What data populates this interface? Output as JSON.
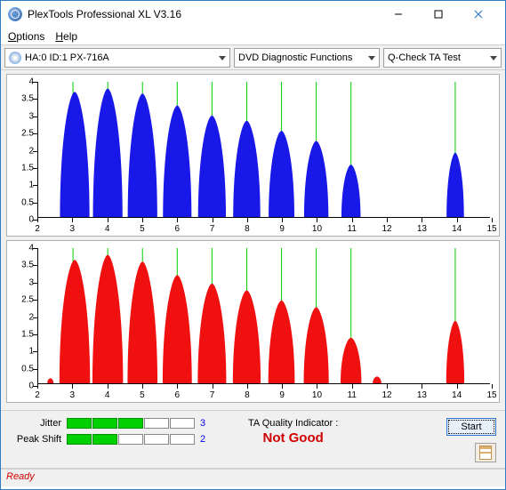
{
  "window": {
    "title": "PlexTools Professional XL V3.16"
  },
  "menu": {
    "options": "Options",
    "help": "Help"
  },
  "toolbar": {
    "device": "HA:0 ID:1  PX-716A",
    "mode": "DVD Diagnostic Functions",
    "test": "Q-Check TA Test"
  },
  "charts": {
    "x": {
      "min": 2,
      "max": 15,
      "ticks": [
        2,
        3,
        4,
        5,
        6,
        7,
        8,
        9,
        10,
        11,
        12,
        13,
        14,
        15
      ]
    },
    "y": {
      "min": 0,
      "max": 4,
      "ticks": [
        0,
        0.5,
        1,
        1.5,
        2,
        2.5,
        3,
        3.5,
        4
      ]
    },
    "vlines": [
      3,
      4,
      5,
      6,
      7,
      8,
      9,
      10,
      11,
      14
    ],
    "top": {
      "color": "#1818e8",
      "peaks": [
        {
          "c": 3.05,
          "h": 3.7,
          "w": 0.85
        },
        {
          "c": 4.0,
          "h": 3.8,
          "w": 0.85
        },
        {
          "c": 5.0,
          "h": 3.65,
          "w": 0.85
        },
        {
          "c": 6.0,
          "h": 3.3,
          "w": 0.82
        },
        {
          "c": 7.0,
          "h": 3.0,
          "w": 0.8
        },
        {
          "c": 8.0,
          "h": 2.85,
          "w": 0.78
        },
        {
          "c": 9.0,
          "h": 2.55,
          "w": 0.74
        },
        {
          "c": 10.0,
          "h": 2.25,
          "w": 0.7
        },
        {
          "c": 11.0,
          "h": 1.55,
          "w": 0.55
        },
        {
          "c": 14.0,
          "h": 1.9,
          "w": 0.5
        }
      ]
    },
    "bottom": {
      "color": "#f01010",
      "peaks": [
        {
          "c": 3.05,
          "h": 3.65,
          "w": 0.88
        },
        {
          "c": 4.0,
          "h": 3.8,
          "w": 0.88
        },
        {
          "c": 5.0,
          "h": 3.6,
          "w": 0.86
        },
        {
          "c": 6.0,
          "h": 3.2,
          "w": 0.84
        },
        {
          "c": 7.0,
          "h": 2.95,
          "w": 0.82
        },
        {
          "c": 8.0,
          "h": 2.75,
          "w": 0.8
        },
        {
          "c": 9.0,
          "h": 2.45,
          "w": 0.76
        },
        {
          "c": 10.0,
          "h": 2.25,
          "w": 0.72
        },
        {
          "c": 11.0,
          "h": 1.35,
          "w": 0.6
        },
        {
          "c": 14.0,
          "h": 1.85,
          "w": 0.52
        }
      ],
      "extra_blips": [
        {
          "c": 2.35,
          "h": 0.15,
          "w": 0.18
        },
        {
          "c": 11.75,
          "h": 0.2,
          "w": 0.25
        }
      ]
    }
  },
  "metrics": {
    "jitter": {
      "label": "Jitter",
      "value": "3",
      "filled": 3,
      "total": 5
    },
    "peakshift": {
      "label": "Peak Shift",
      "value": "2",
      "filled": 2,
      "total": 5
    }
  },
  "quality": {
    "label": "TA Quality Indicator :",
    "value": "Not Good",
    "color": "#d00000"
  },
  "buttons": {
    "start": "Start"
  },
  "status": {
    "text": "Ready"
  }
}
